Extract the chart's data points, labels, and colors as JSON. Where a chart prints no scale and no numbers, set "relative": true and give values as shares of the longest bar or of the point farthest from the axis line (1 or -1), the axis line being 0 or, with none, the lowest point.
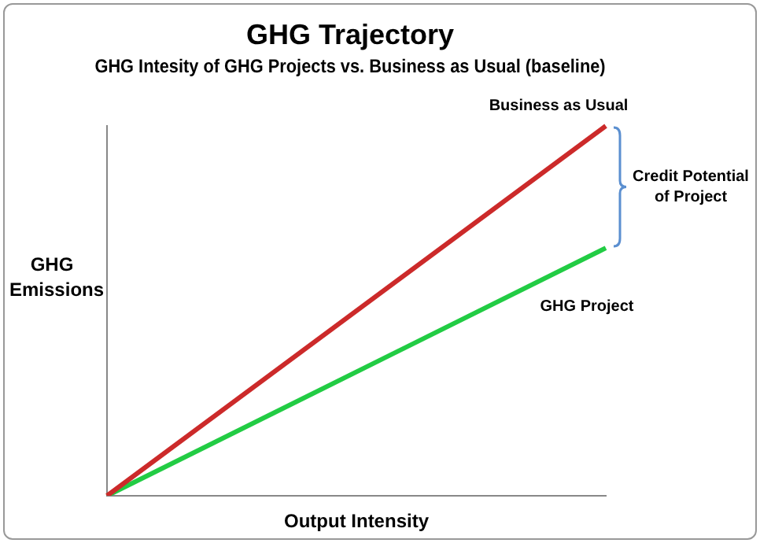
{
  "chart_data": {
    "type": "line",
    "title": "GHG Trajectory",
    "subtitle": "GHG Intesity of GHG Projects vs. Business as Usual (baseline)",
    "xlabel": "Output Intensity",
    "ylabel": "GHG Emissions",
    "relative": true,
    "categories": [
      null,
      null
    ],
    "series": [
      {
        "name": "Business as Usual",
        "color": "#cc2a2a",
        "values": [
          0,
          1
        ]
      },
      {
        "name": "GHG Project",
        "color": "#22cc44",
        "values": [
          0,
          0.67
        ]
      }
    ],
    "annotations": [
      "Credit Potential of Project"
    ],
    "marker": "none",
    "line_style": "solid",
    "grid": false,
    "legend": false
  }
}
